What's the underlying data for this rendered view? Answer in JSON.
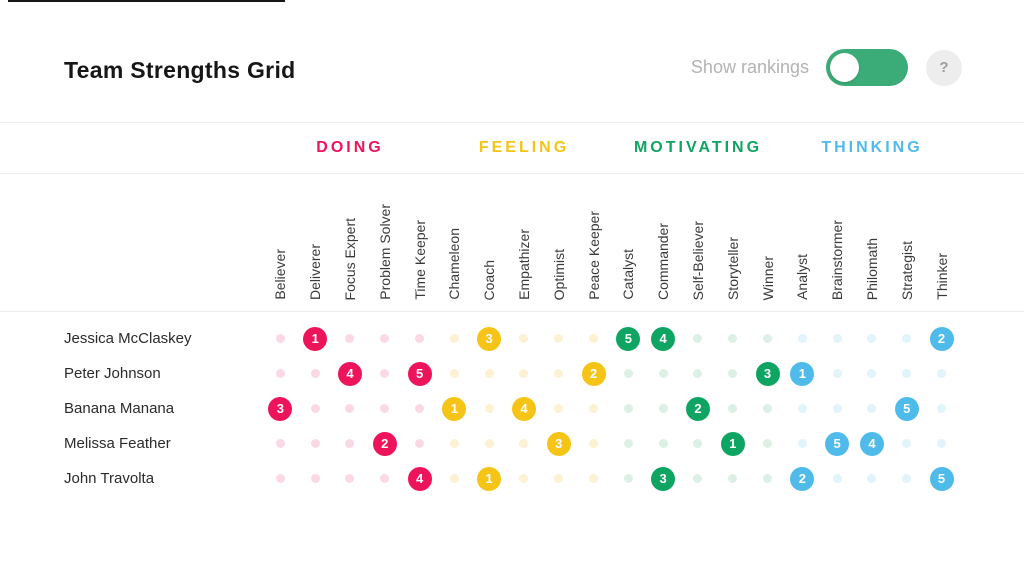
{
  "header": {
    "title": "Team Strengths Grid",
    "toggle_label": "Show rankings",
    "toggle_on": false,
    "help_label": "?"
  },
  "categories": [
    {
      "label": "DOING",
      "color": "#ED145B",
      "pale": "#FBD9E4"
    },
    {
      "label": "FEELING",
      "color": "#F6C417",
      "pale": "#FCF1D3"
    },
    {
      "label": "MOTIVATING",
      "color": "#0EA563",
      "pale": "#DDF0E5"
    },
    {
      "label": "THINKING",
      "color": "#4FBBEA",
      "pale": "#E1F3FB"
    }
  ],
  "columns": [
    "Believer",
    "Deliverer",
    "Focus Expert",
    "Problem Solver",
    "Time Keeper",
    "Chameleon",
    "Coach",
    "Empathizer",
    "Optimist",
    "Peace Keeper",
    "Catalyst",
    "Commander",
    "Self-Believer",
    "Storyteller",
    "Winner",
    "Analyst",
    "Brainstormer",
    "Philomath",
    "Strategist",
    "Thinker"
  ],
  "rows": [
    {
      "name": "Jessica McClaskey",
      "values": [
        null,
        1,
        null,
        null,
        null,
        null,
        3,
        null,
        null,
        null,
        5,
        4,
        null,
        null,
        null,
        null,
        null,
        null,
        null,
        2
      ]
    },
    {
      "name": "Peter Johnson",
      "values": [
        null,
        null,
        4,
        null,
        5,
        null,
        null,
        null,
        null,
        2,
        null,
        null,
        null,
        null,
        3,
        1,
        null,
        null,
        null,
        null
      ]
    },
    {
      "name": "Banana Manana",
      "values": [
        3,
        null,
        null,
        null,
        null,
        1,
        null,
        4,
        null,
        null,
        null,
        null,
        2,
        null,
        null,
        null,
        null,
        null,
        5,
        null
      ]
    },
    {
      "name": "Melissa Feather",
      "values": [
        null,
        null,
        null,
        2,
        null,
        null,
        null,
        null,
        3,
        null,
        null,
        null,
        null,
        1,
        null,
        null,
        5,
        4,
        null,
        null
      ]
    },
    {
      "name": "John Travolta",
      "values": [
        null,
        null,
        null,
        null,
        4,
        null,
        1,
        null,
        null,
        null,
        null,
        3,
        null,
        null,
        null,
        2,
        null,
        null,
        null,
        5
      ]
    }
  ]
}
